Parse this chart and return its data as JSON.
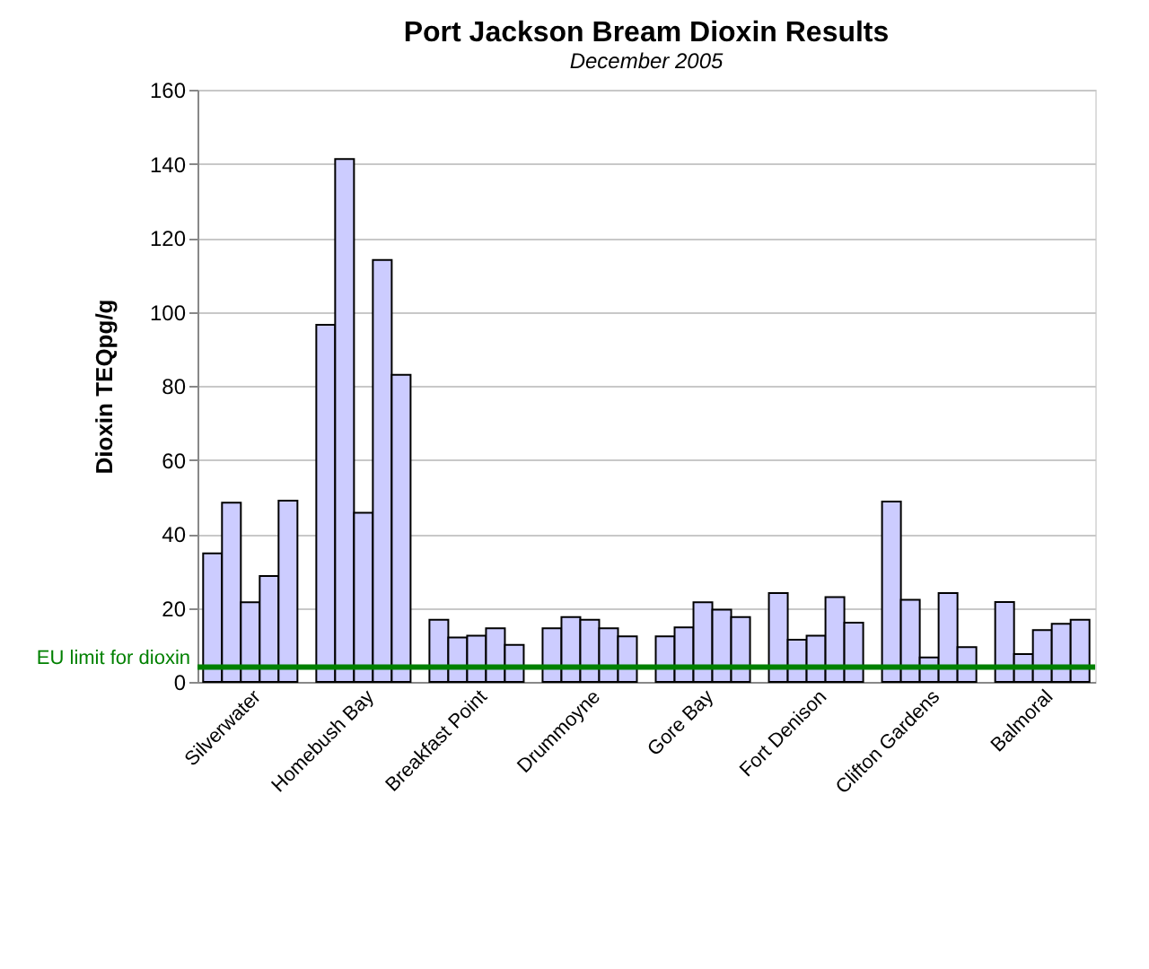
{
  "chart_data": {
    "type": "bar",
    "title": "Port Jackson Bream Dioxin Results",
    "subtitle": "December 2005",
    "ylabel": "Dioxin TEQpg/g",
    "categories": [
      null,
      null,
      "Silverwater",
      null,
      null,
      null,
      null,
      null,
      "Homebush Bay",
      null,
      null,
      null,
      null,
      null,
      "Breakfast Point",
      null,
      null,
      null,
      null,
      null,
      "Drummoyne",
      null,
      null,
      null,
      null,
      null,
      "Gore Bay",
      null,
      null,
      null,
      null,
      null,
      "Fort Denison",
      null,
      null,
      null,
      null,
      null,
      "Clifton Gardens",
      null,
      null,
      null,
      null,
      null,
      "Balmoral",
      null,
      null
    ],
    "series": [
      {
        "color": "#ccccff",
        "values": [
          34.7,
          48.4,
          21.5,
          28.6,
          49,
          null,
          96.5,
          141.3,
          45.7,
          114,
          83,
          null,
          16.8,
          12,
          12.5,
          14.5,
          10,
          null,
          14.5,
          17.5,
          16.8,
          14.5,
          12.3,
          null,
          12.3,
          14.7,
          21.5,
          19.5,
          17.5,
          null,
          24,
          11.4,
          12.5,
          22.9,
          16,
          null,
          48.7,
          22.2,
          6.6,
          24,
          9.4,
          null,
          21.6,
          7.5,
          14,
          15.7,
          16.8
        ]
      }
    ],
    "ylim": [
      0,
      160
    ],
    "yticks": [
      0,
      20,
      40,
      60,
      80,
      100,
      120,
      140,
      160
    ],
    "grid": "y",
    "ref_lines": [
      {
        "axis": "y",
        "value": 4,
        "label": "EU limit for dioxin",
        "color": "#008000"
      }
    ]
  }
}
